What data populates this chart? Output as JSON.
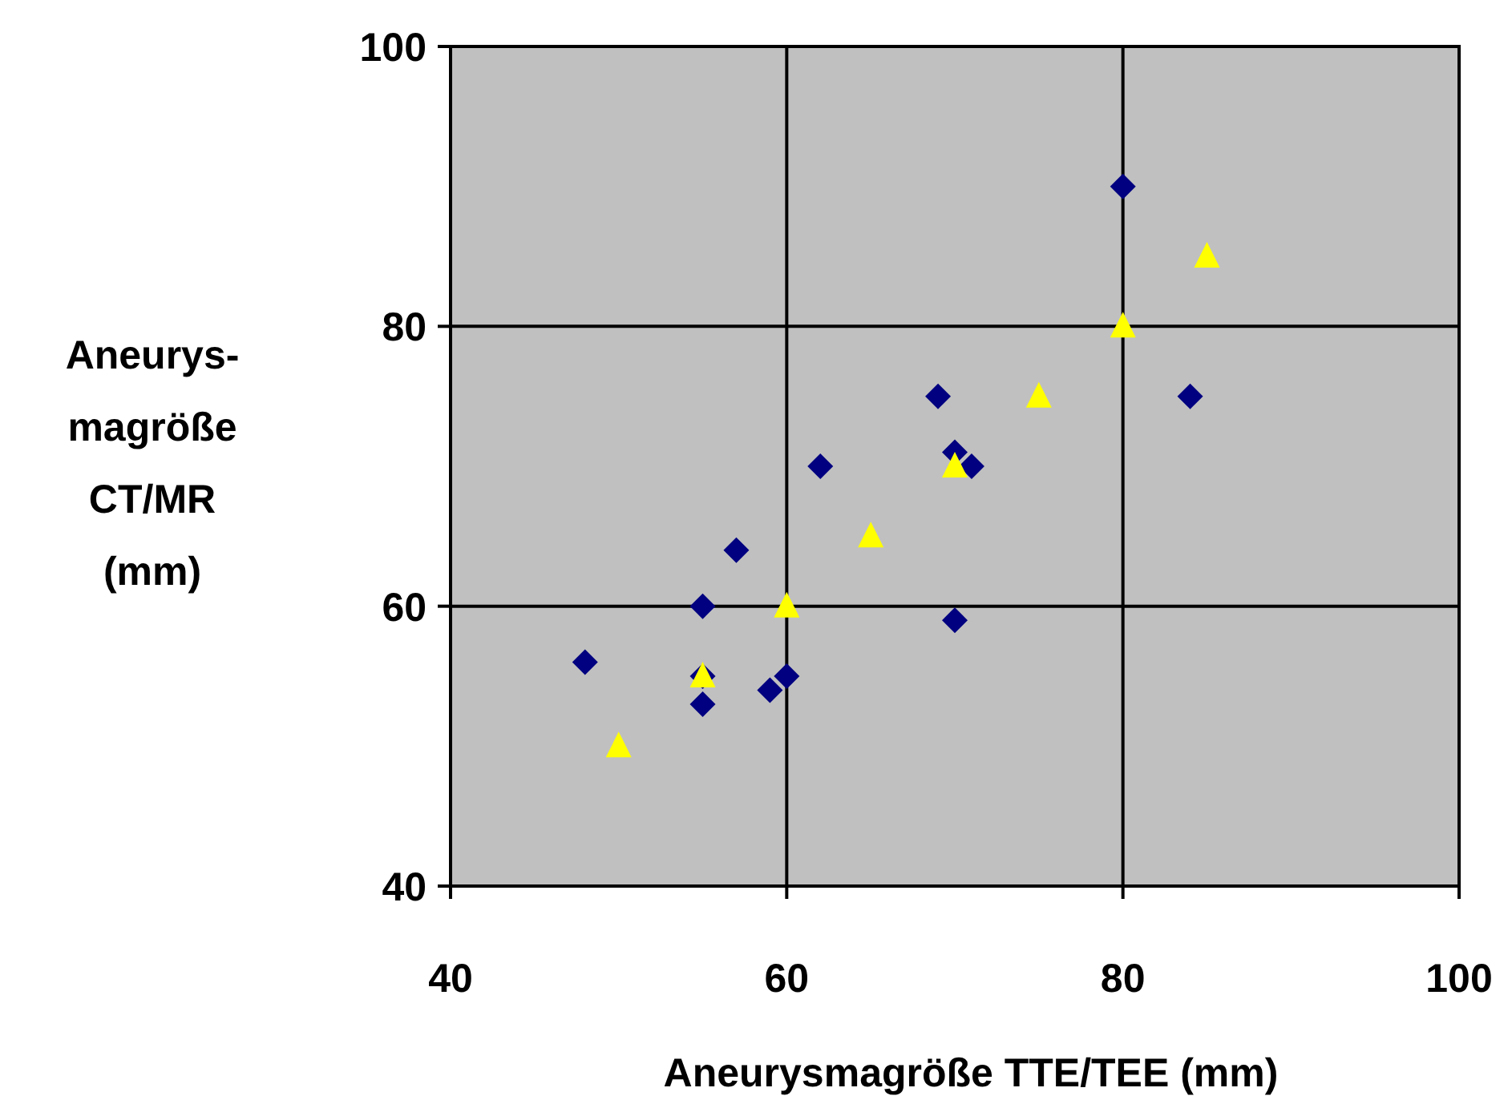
{
  "chart_data": {
    "type": "scatter",
    "xlabel": "Aneurysmagröße TTE/TEE (mm)",
    "ylabel": "Aneurys-\nmagröße\nCT/MR\n(mm)",
    "xlim": [
      40,
      100
    ],
    "ylim": [
      40,
      100
    ],
    "xticks": [
      40,
      60,
      80,
      100
    ],
    "yticks": [
      40,
      60,
      80,
      100
    ],
    "grid": true,
    "series": [
      {
        "color": "#000080",
        "marker": "diamond",
        "x": [
          48,
          55,
          55,
          55,
          57,
          59,
          60,
          62,
          69,
          70,
          71,
          70,
          80,
          84
        ],
        "values": [
          56,
          60,
          55,
          53,
          64,
          54,
          55,
          70,
          75,
          71,
          70,
          59,
          90,
          75
        ]
      },
      {
        "color": "#ffff00",
        "marker": "triangle",
        "x": [
          50,
          55,
          60,
          65,
          70,
          75,
          80,
          85
        ],
        "values": [
          50,
          55,
          60,
          65,
          70,
          75,
          80,
          85
        ]
      }
    ]
  }
}
